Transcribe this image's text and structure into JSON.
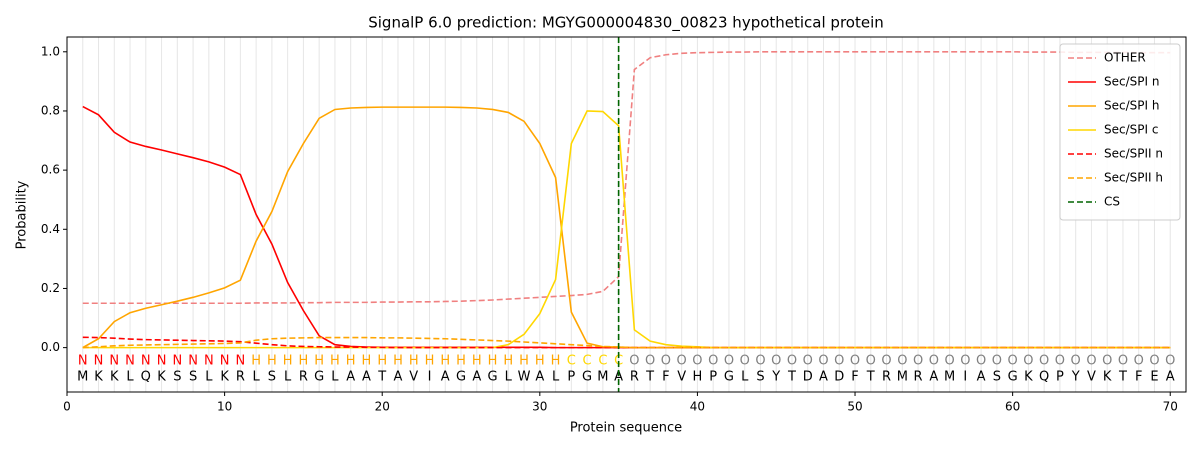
{
  "chart_data": {
    "type": "line",
    "title": "SignalP 6.0 prediction: MGYG000004830_00823 hypothetical protein",
    "x_label": "Protein sequence",
    "y_label": "Probability",
    "xlim": [
      0,
      71
    ],
    "ylim": [
      -0.15,
      1.05
    ],
    "xticks": [
      0,
      10,
      20,
      30,
      40,
      50,
      60,
      70
    ],
    "yticks": [
      {
        "value": 0,
        "label": "0.0"
      },
      {
        "value": 0.2,
        "label": "0.2"
      },
      {
        "value": 0.4,
        "label": "0.4"
      },
      {
        "value": 0.6,
        "label": "0.6"
      },
      {
        "value": 0.8,
        "label": "0.8"
      },
      {
        "value": 1,
        "label": "1.0"
      }
    ],
    "grid": true,
    "legend": "upper right",
    "x": [
      1,
      2,
      3,
      4,
      5,
      6,
      7,
      8,
      9,
      10,
      11,
      12,
      13,
      14,
      15,
      16,
      17,
      18,
      19,
      20,
      21,
      22,
      23,
      24,
      25,
      26,
      27,
      28,
      29,
      30,
      31,
      32,
      33,
      34,
      35,
      36,
      37,
      38,
      39,
      40,
      41,
      42,
      43,
      44,
      45,
      46,
      47,
      48,
      49,
      50,
      51,
      52,
      53,
      54,
      55,
      56,
      57,
      58,
      59,
      60,
      61,
      62,
      63,
      64,
      65,
      66,
      67,
      68,
      69,
      70
    ],
    "sequence": [
      "M",
      "K",
      "K",
      "L",
      "Q",
      "K",
      "S",
      "S",
      "L",
      "K",
      "R",
      "L",
      "S",
      "L",
      "R",
      "G",
      "L",
      "A",
      "A",
      "T",
      "A",
      "V",
      "I",
      "A",
      "G",
      "A",
      "G",
      "L",
      "W",
      "A",
      "L",
      "P",
      "G",
      "M",
      "A",
      "R",
      "T",
      "F",
      "V",
      "H",
      "P",
      "G",
      "L",
      "S",
      "Y",
      "T",
      "D",
      "A",
      "D",
      "F",
      "T",
      "R",
      "M",
      "R",
      "A",
      "M",
      "I",
      "A",
      "S",
      "G",
      "K",
      "Q",
      "P",
      "Y",
      "V",
      "K",
      "T",
      "F",
      "E",
      "A"
    ],
    "labels": [
      "N",
      "N",
      "N",
      "N",
      "N",
      "N",
      "N",
      "N",
      "N",
      "N",
      "N",
      "H",
      "H",
      "H",
      "H",
      "H",
      "H",
      "H",
      "H",
      "H",
      "H",
      "H",
      "H",
      "H",
      "H",
      "H",
      "H",
      "H",
      "H",
      "H",
      "H",
      "C",
      "C",
      "C",
      "C",
      "O",
      "O",
      "O",
      "O",
      "O",
      "O",
      "O",
      "O",
      "O",
      "O",
      "O",
      "O",
      "O",
      "O",
      "O",
      "O",
      "O",
      "O",
      "O",
      "O",
      "O",
      "O",
      "O",
      "O",
      "O",
      "O",
      "O",
      "O",
      "O",
      "O",
      "O",
      "O",
      "O",
      "O",
      "O"
    ],
    "label_colors": {
      "N": "#ff0000",
      "H": "#ffa500",
      "C": "#ffd700",
      "O": "#808080"
    },
    "series": [
      {
        "name": "OTHER",
        "color": "#f08080",
        "dashed": true,
        "values": [
          0.15,
          0.15,
          0.15,
          0.15,
          0.15,
          0.15,
          0.15,
          0.15,
          0.15,
          0.15,
          0.15,
          0.151,
          0.151,
          0.151,
          0.152,
          0.152,
          0.153,
          0.153,
          0.153,
          0.154,
          0.154,
          0.155,
          0.155,
          0.156,
          0.157,
          0.159,
          0.161,
          0.164,
          0.167,
          0.17,
          0.173,
          0.176,
          0.18,
          0.19,
          0.24,
          0.94,
          0.98,
          0.99,
          0.995,
          0.997,
          0.998,
          0.999,
          0.999,
          1.0,
          1.0,
          1.0,
          1.0,
          1.0,
          1.0,
          1.0,
          1.0,
          1.0,
          1.0,
          1.0,
          1.0,
          1.0,
          1.0,
          1.0,
          1.0,
          1.0,
          0.999,
          0.999,
          0.999,
          0.998,
          0.998,
          0.998,
          0.998,
          0.997,
          0.997,
          0.997
        ]
      },
      {
        "name": "Sec/SPI n",
        "color": "#ff0000",
        "dashed": false,
        "values": [
          0.815,
          0.787,
          0.728,
          0.695,
          0.68,
          0.668,
          0.655,
          0.642,
          0.628,
          0.61,
          0.585,
          0.45,
          0.35,
          0.22,
          0.125,
          0.04,
          0.01,
          0.004,
          0.002,
          0.001,
          0.001,
          0.001,
          0.001,
          0.001,
          0.001,
          0.001,
          0.001,
          0.001,
          0.001,
          0.001,
          0,
          0,
          0,
          0,
          0,
          0,
          0,
          0,
          0,
          0,
          0,
          0,
          0,
          0,
          0,
          0,
          0,
          0,
          0,
          0,
          0,
          0,
          0,
          0,
          0,
          0,
          0,
          0,
          0,
          0,
          0,
          0,
          0,
          0,
          0,
          0,
          0,
          0,
          0,
          0
        ]
      },
      {
        "name": "Sec/SPI h",
        "color": "#ffa500",
        "dashed": false,
        "values": [
          0,
          0.03,
          0.088,
          0.118,
          0.133,
          0.145,
          0.157,
          0.17,
          0.185,
          0.202,
          0.228,
          0.36,
          0.46,
          0.595,
          0.69,
          0.775,
          0.805,
          0.81,
          0.812,
          0.813,
          0.813,
          0.813,
          0.813,
          0.813,
          0.812,
          0.81,
          0.805,
          0.795,
          0.765,
          0.69,
          0.575,
          0.12,
          0.015,
          0.003,
          0.002,
          0,
          0,
          0,
          0,
          0,
          0,
          0,
          0,
          0,
          0,
          0,
          0,
          0,
          0,
          0,
          0,
          0,
          0,
          0,
          0,
          0,
          0,
          0,
          0,
          0,
          0,
          0,
          0,
          0,
          0,
          0,
          0,
          0,
          0,
          0
        ]
      },
      {
        "name": "Sec/SPI c",
        "color": "#ffd700",
        "dashed": false,
        "values": [
          0,
          0,
          0,
          0,
          0,
          0,
          0,
          0,
          0,
          0,
          0,
          0,
          0,
          0,
          0,
          0,
          0,
          0,
          0,
          0,
          0,
          0,
          0,
          0,
          0,
          0,
          0,
          0.01,
          0.045,
          0.115,
          0.23,
          0.69,
          0.8,
          0.798,
          0.75,
          0.06,
          0.022,
          0.01,
          0.005,
          0.003,
          0,
          0,
          0,
          0,
          0,
          0,
          0,
          0,
          0,
          0,
          0,
          0,
          0,
          0,
          0,
          0,
          0,
          0,
          0,
          0,
          0,
          0,
          0,
          0,
          0,
          0,
          0,
          0,
          0,
          0
        ]
      },
      {
        "name": "Sec/SPII n",
        "color": "#ff0000",
        "dashed": true,
        "values": [
          0.035,
          0.034,
          0.032,
          0.029,
          0.027,
          0.026,
          0.025,
          0.024,
          0.023,
          0.022,
          0.02,
          0.015,
          0.01,
          0.006,
          0.004,
          0.003,
          0.002,
          0.002,
          0.001,
          0.001,
          0,
          0,
          0,
          0,
          0,
          0,
          0,
          0,
          0,
          0,
          0,
          0,
          0,
          0,
          0,
          0,
          0,
          0,
          0,
          0,
          0,
          0,
          0,
          0,
          0,
          0,
          0,
          0,
          0,
          0,
          0,
          0,
          0,
          0,
          0,
          0,
          0,
          0,
          0,
          0,
          0,
          0,
          0,
          0,
          0,
          0,
          0,
          0,
          0,
          0
        ]
      },
      {
        "name": "Sec/SPII h",
        "color": "#ffa500",
        "dashed": true,
        "values": [
          0,
          0.003,
          0.006,
          0.008,
          0.009,
          0.01,
          0.011,
          0.012,
          0.013,
          0.014,
          0.016,
          0.025,
          0.03,
          0.032,
          0.033,
          0.034,
          0.034,
          0.034,
          0.034,
          0.033,
          0.033,
          0.032,
          0.031,
          0.03,
          0.028,
          0.026,
          0.024,
          0.022,
          0.019,
          0.016,
          0.013,
          0.01,
          0.007,
          0.004,
          0.002,
          0,
          0,
          0,
          0,
          0,
          0,
          0,
          0,
          0,
          0,
          0,
          0,
          0,
          0,
          0,
          0,
          0,
          0,
          0,
          0,
          0,
          0,
          0,
          0,
          0,
          0,
          0,
          0,
          0,
          0,
          0,
          0,
          0,
          0,
          0
        ]
      }
    ],
    "cs": {
      "name": "CS",
      "color": "#006400",
      "x": 35
    }
  }
}
